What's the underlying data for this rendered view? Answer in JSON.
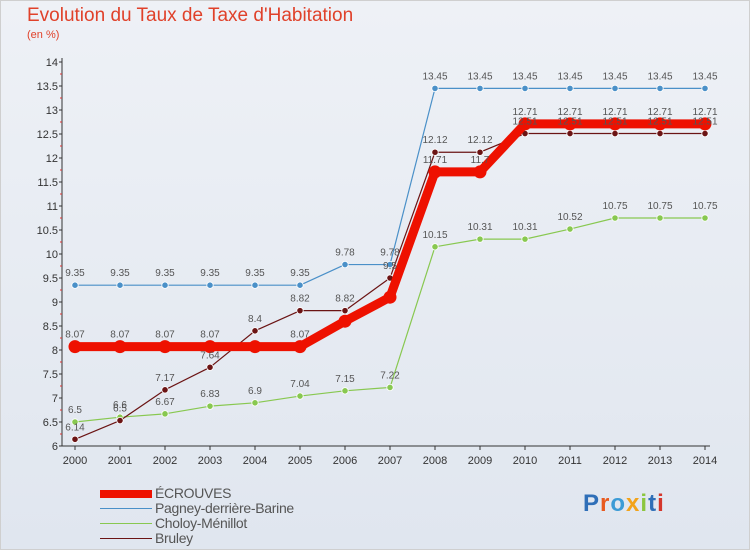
{
  "title": "Evolution du Taux de Taxe d'Habitation",
  "unit_label": "(en %)",
  "logo_text": "Proxiti",
  "chart_data": {
    "type": "line",
    "title": "Evolution du Taux de Taxe d'Habitation",
    "ylabel": "(en %)",
    "xlabel": "",
    "ylim": [
      6,
      14
    ],
    "yticks": [
      "6",
      "6.5",
      "7",
      "7.5",
      "8",
      "8.5",
      "9",
      "9.5",
      "10",
      "10.5",
      "11",
      "11.5",
      "12",
      "12.5",
      "13",
      "13.5",
      "14"
    ],
    "x": [
      "2000",
      "2001",
      "2002",
      "2003",
      "2004",
      "2005",
      "2006",
      "2007",
      "2008",
      "2009",
      "2010",
      "2011",
      "2012",
      "2013",
      "2014"
    ],
    "grid": false,
    "legend_position": "bottom-left",
    "series": [
      {
        "name": "ÉCROUVES",
        "color": "#ee1100",
        "values": [
          8.07,
          8.07,
          8.07,
          8.07,
          8.07,
          8.07,
          8.6,
          9.1,
          11.71,
          11.71,
          12.71,
          12.71,
          12.71,
          12.71,
          12.71
        ],
        "labels": [
          "8.07",
          "8.07",
          "8.07",
          "8.07",
          "",
          "8.07",
          "",
          "",
          "11.71",
          "11.7",
          "12.71",
          "12.71",
          "12.71",
          "12.71",
          "12.71"
        ]
      },
      {
        "name": "Pagney-derrière-Barine",
        "color": "#4a90c8",
        "values": [
          9.35,
          9.35,
          9.35,
          9.35,
          9.35,
          9.35,
          9.78,
          9.78,
          13.45,
          13.45,
          13.45,
          13.45,
          13.45,
          13.45,
          13.45
        ],
        "labels": [
          "9.35",
          "9.35",
          "9.35",
          "9.35",
          "9.35",
          "9.35",
          "9.78",
          "9.78",
          "13.45",
          "13.45",
          "13.45",
          "13.45",
          "13.45",
          "13.45",
          "13.45"
        ]
      },
      {
        "name": "Choloy-Ménillot",
        "color": "#88c850",
        "values": [
          6.5,
          6.6,
          6.67,
          6.83,
          6.9,
          7.04,
          7.15,
          7.22,
          10.15,
          10.31,
          10.31,
          10.52,
          10.75,
          10.75,
          10.75
        ],
        "labels": [
          "6.5",
          "6.6",
          "6.67",
          "6.83",
          "6.9",
          "7.04",
          "7.15",
          "7.22",
          "10.15",
          "10.31",
          "10.31",
          "10.52",
          "10.75",
          "10.75",
          "10.75"
        ]
      },
      {
        "name": "Bruley",
        "color": "#6b1414",
        "values": [
          6.14,
          6.53,
          7.17,
          7.64,
          8.4,
          8.82,
          8.82,
          9.5,
          12.12,
          12.12,
          12.51,
          12.51,
          12.51,
          12.51,
          12.51
        ],
        "labels": [
          "6.14",
          "6.5",
          "7.17",
          "7.64",
          "8.4",
          "8.82",
          "8.82",
          "9.5",
          "12.12",
          "12.12",
          "12.51",
          "12.51",
          "12.51",
          "12.51",
          "12.51"
        ]
      }
    ]
  }
}
